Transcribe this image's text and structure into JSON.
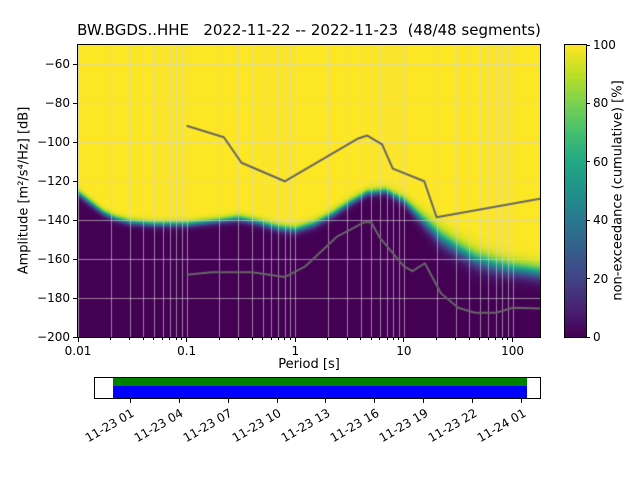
{
  "chart_data": {
    "type": "heatmap",
    "title": "BW.BGDS..HHE   2022-11-22 -- 2022-11-23  (48/48 segments)",
    "station": "BW.BGDS..HHE",
    "date_range": "2022-11-22 -- 2022-11-23",
    "segments": "48/48",
    "xlabel": "Period [s]",
    "ylabel": "Amplitude [m²/s⁴/Hz] [dB]",
    "colorbar_label": "non-exceedance (cumulative) [%]",
    "x_scale": "log",
    "xlim": [
      0.01,
      179
    ],
    "ylim": [
      -200,
      -50
    ],
    "x_tick_labels": [
      "0.01",
      "0.1",
      "1",
      "10",
      "100"
    ],
    "x_tick_values": [
      0.01,
      0.1,
      1,
      10,
      100
    ],
    "y_tick_values": [
      -60,
      -80,
      -100,
      -120,
      -140,
      -160,
      -180,
      -200
    ],
    "colorbar_tick_values": [
      0,
      20,
      40,
      60,
      80,
      100
    ],
    "grid": true,
    "grid_color": "rgba(211,211,211,0.6)",
    "colormap": "viridis",
    "colormap_stops": [
      [
        0.0,
        "#440154"
      ],
      [
        0.1,
        "#482475"
      ],
      [
        0.2,
        "#414487"
      ],
      [
        0.3,
        "#355f8d"
      ],
      [
        0.4,
        "#2a788e"
      ],
      [
        0.5,
        "#21918c"
      ],
      [
        0.6,
        "#22a884"
      ],
      [
        0.7,
        "#44bf70"
      ],
      [
        0.8,
        "#7ad151"
      ],
      [
        0.9,
        "#bddf26"
      ],
      [
        1.0,
        "#fde725"
      ]
    ],
    "distribution": {
      "note": "cumulative non-exceedance % rises from 0 (dark, below) to 100 (yellow, above) across median_db with transition width spread_db",
      "periods": [
        0.01,
        0.013,
        0.017,
        0.022,
        0.03,
        0.05,
        0.07,
        0.1,
        0.15,
        0.22,
        0.3,
        0.45,
        0.7,
        1.0,
        1.5,
        2.2,
        3.2,
        4.6,
        6.8,
        10,
        15,
        22,
        32,
        46,
        68,
        100,
        140,
        179
      ],
      "median_db": [
        -126,
        -131,
        -136,
        -139,
        -141,
        -142,
        -142,
        -142,
        -141,
        -140,
        -139,
        -141,
        -144,
        -145,
        -142,
        -137,
        -131,
        -126,
        -125,
        -130,
        -140,
        -149,
        -155,
        -160,
        -163,
        -165,
        -166,
        -167
      ],
      "spread_db": [
        2.0,
        2.0,
        1.8,
        1.8,
        1.8,
        1.8,
        1.8,
        1.8,
        1.8,
        1.8,
        2.0,
        2.0,
        2.2,
        2.2,
        2.2,
        2.2,
        2.2,
        2.0,
        2.0,
        2.5,
        4.0,
        5.0,
        5.0,
        5.0,
        5.0,
        4.5,
        4.5,
        4.5
      ]
    },
    "noise_models": {
      "color": "#666666",
      "nhnm": {
        "periods": [
          0.1,
          0.22,
          0.32,
          0.8,
          3.8,
          4.6,
          6.3,
          7.9,
          15.4,
          20,
          179
        ],
        "db": [
          -91.5,
          -97.4,
          -110.5,
          -120.0,
          -98.0,
          -96.5,
          -101.0,
          -113.5,
          -120.0,
          -138.5,
          -129.0
        ]
      },
      "nlnm": {
        "periods": [
          0.1,
          0.17,
          0.4,
          0.8,
          1.24,
          2.4,
          4.3,
          5,
          6,
          10,
          12,
          15.6,
          21.9,
          31.6,
          45,
          70,
          101,
          179
        ],
        "db": [
          -168.0,
          -166.7,
          -166.7,
          -169.2,
          -163.7,
          -148.6,
          -141.1,
          -141.1,
          -149.0,
          -163.7,
          -166.2,
          -162.1,
          -177.5,
          -185.0,
          -187.5,
          -187.5,
          -185.0,
          -185.4
        ]
      }
    },
    "timeline": {
      "labels": [
        "11-23 01",
        "11-23 04",
        "11-23 07",
        "11-23 10",
        "11-23 13",
        "11-23 16",
        "11-23 19",
        "11-23 22",
        "11-24 01"
      ],
      "coverage_start_frac": 0.04,
      "coverage_end_frac": 0.971,
      "green": "#008000",
      "blue": "#0000ff",
      "first_tick_frac": 0.079,
      "tick_step_frac": 0.11
    }
  }
}
